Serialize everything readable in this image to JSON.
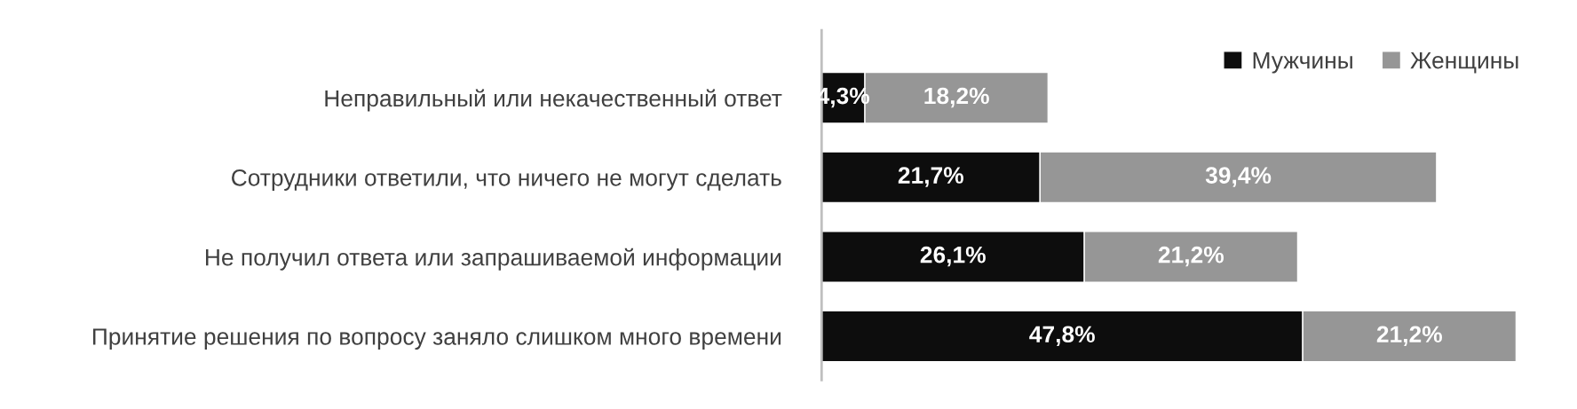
{
  "chart_data": {
    "type": "bar",
    "orientation": "horizontal",
    "stacked": true,
    "categories": [
      "Неправильный или некачественный ответ",
      "Сотрудники ответили, что ничего не могут сделать",
      "Не получил ответа или запрашиваемой информации",
      "Принятие решения по вопросу заняло слишком много времени"
    ],
    "series": [
      {
        "name": "Мужчины",
        "color": "#0d0d0d",
        "values": [
          4.3,
          21.7,
          26.1,
          47.8
        ],
        "value_labels": [
          "4,3%",
          "21,7%",
          "26,1%",
          "47,8%"
        ]
      },
      {
        "name": "Женщины",
        "color": "#969696",
        "values": [
          18.2,
          39.4,
          21.2,
          21.2
        ],
        "value_labels": [
          "18,2%",
          "39,4%",
          "21,2%",
          "21,2%"
        ]
      }
    ],
    "legend": "top right"
  }
}
